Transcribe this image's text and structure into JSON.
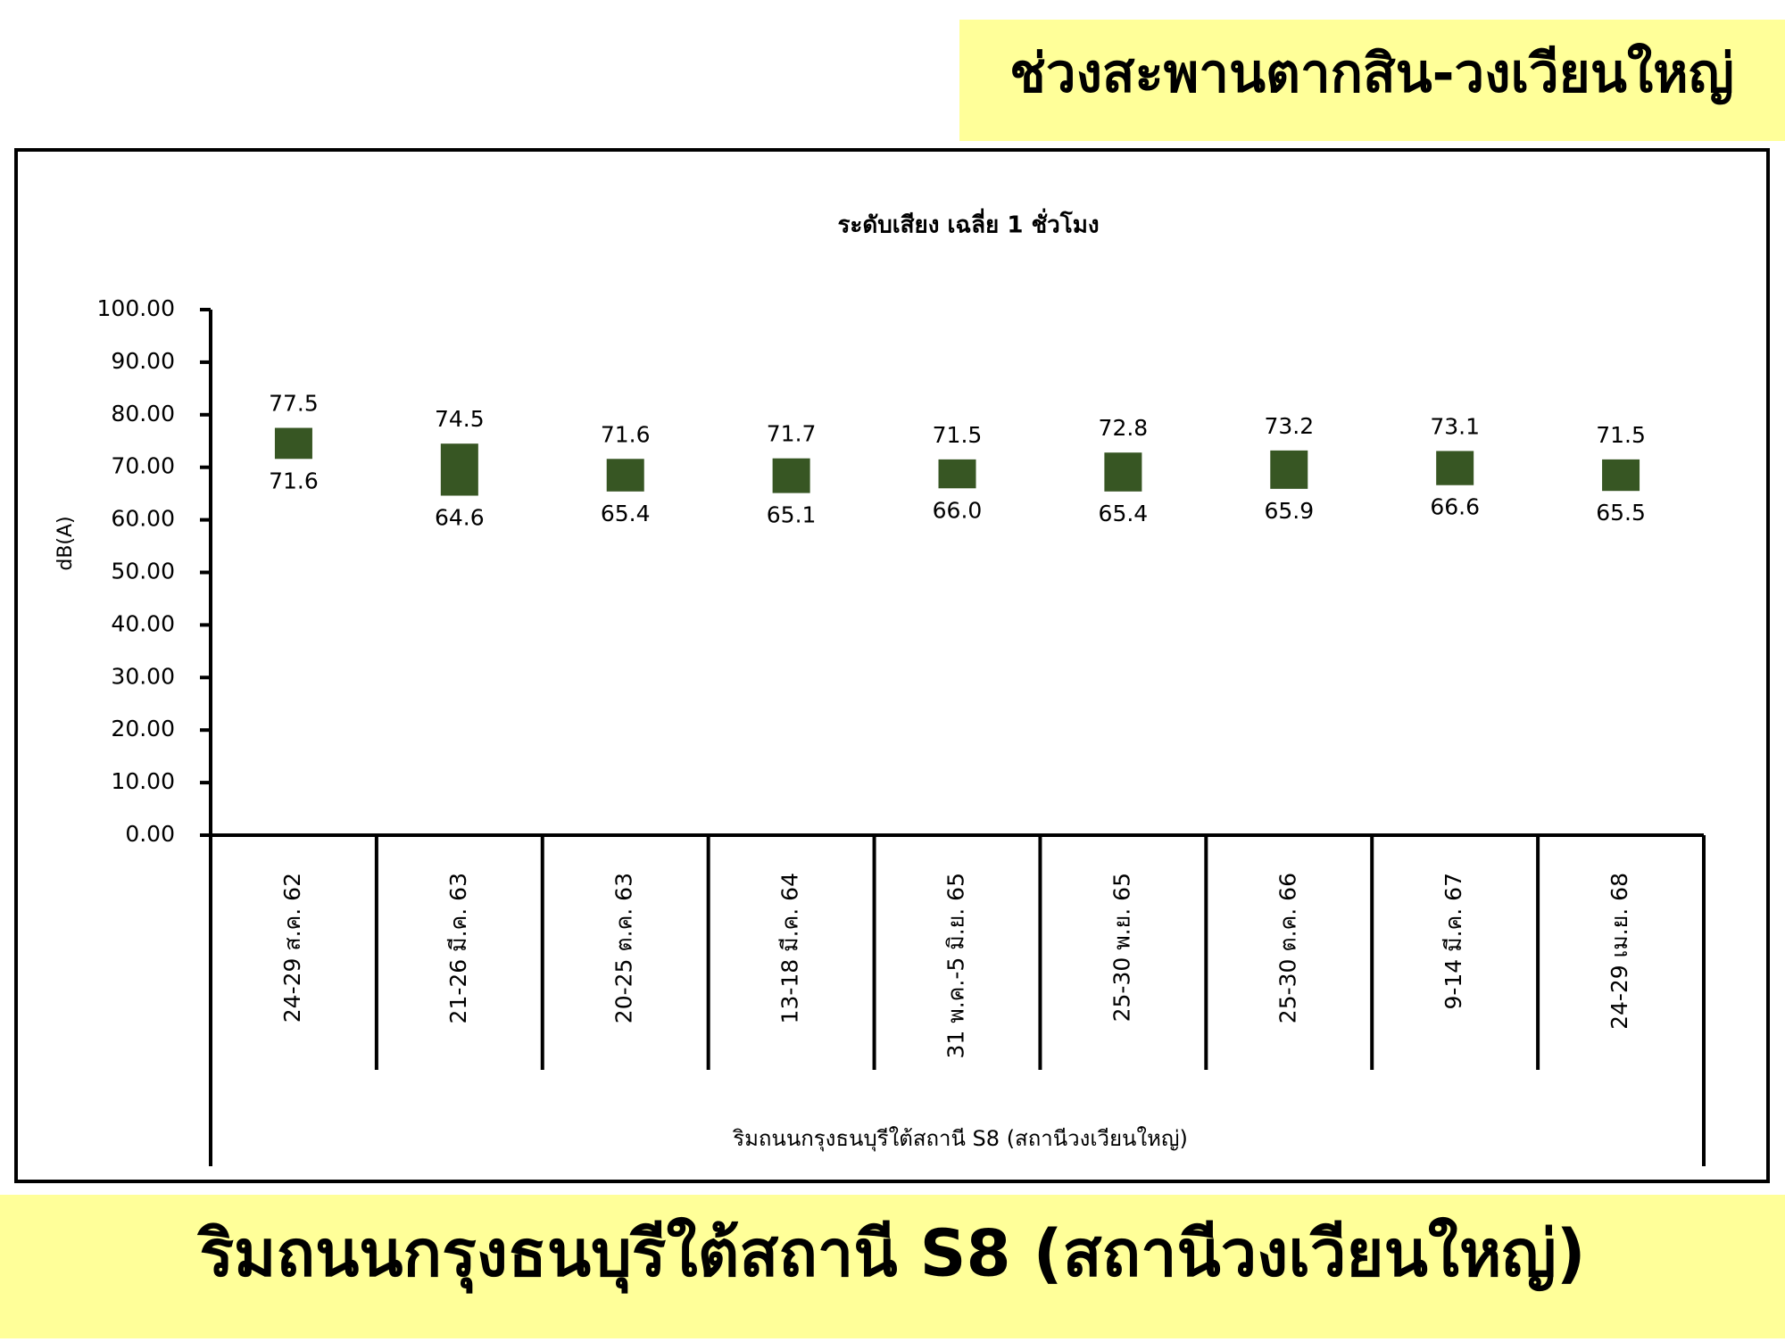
{
  "header": {
    "title": "ช่วงสะพานตากสิน-วงเวียนใหญ่"
  },
  "footer": {
    "title": "ริมถนนกรุงธนบุรีใต้สถานี S8 (สถานีวงเวียนใหญ่)"
  },
  "chart_data": {
    "type": "range_bar",
    "title": "ระดับเสียง เฉลี่ย 1 ชั่วโมง",
    "y_label": "dB(A)",
    "x_label": "ริมถนนกรุงธนบุรีใต้สถานี S8 (สถานีวงเวียนใหญ่)",
    "categories": [
      "24-29 ส.ค. 62",
      "21-26 มี.ค. 63",
      "20-25 ต.ค. 63",
      "13-18 มี.ค. 64",
      "31 พ.ค.-5 มิ.ย. 65",
      "25-30 พ.ย. 65",
      "25-30 ต.ค. 66",
      "9-14 มี.ค. 67",
      "24-29 เม.ย. 68"
    ],
    "series": [
      {
        "color": "#375623",
        "values": [
          71.6,
          64.6,
          65.4,
          65.1,
          66.0,
          65.4,
          65.9,
          66.6,
          65.5
        ],
        "value_labels": [
          "71.6",
          "64.6",
          "65.4",
          "65.1",
          "66.0",
          "65.4",
          "65.9",
          "66.6",
          "65.5"
        ]
      },
      {
        "color": "#375623",
        "values": [
          77.5,
          74.5,
          71.6,
          71.7,
          71.5,
          72.8,
          73.2,
          73.1,
          71.5
        ],
        "value_labels": [
          "77.5",
          "74.5",
          "71.6",
          "71.7",
          "71.5",
          "72.8",
          "73.2",
          "73.1",
          "71.5"
        ]
      }
    ],
    "ylim": [
      0,
      100
    ],
    "yticks": [
      {
        "value": 0,
        "label": "0.00"
      },
      {
        "value": 10,
        "label": "10.00"
      },
      {
        "value": 20,
        "label": "20.00"
      },
      {
        "value": 30,
        "label": "30.00"
      },
      {
        "value": 40,
        "label": "40.00"
      },
      {
        "value": 50,
        "label": "50.00"
      },
      {
        "value": 60,
        "label": "60.00"
      },
      {
        "value": 70,
        "label": "70.00"
      },
      {
        "value": 80,
        "label": "80.00"
      },
      {
        "value": 90,
        "label": "90.00"
      },
      {
        "value": 100,
        "label": "100.00"
      }
    ]
  }
}
